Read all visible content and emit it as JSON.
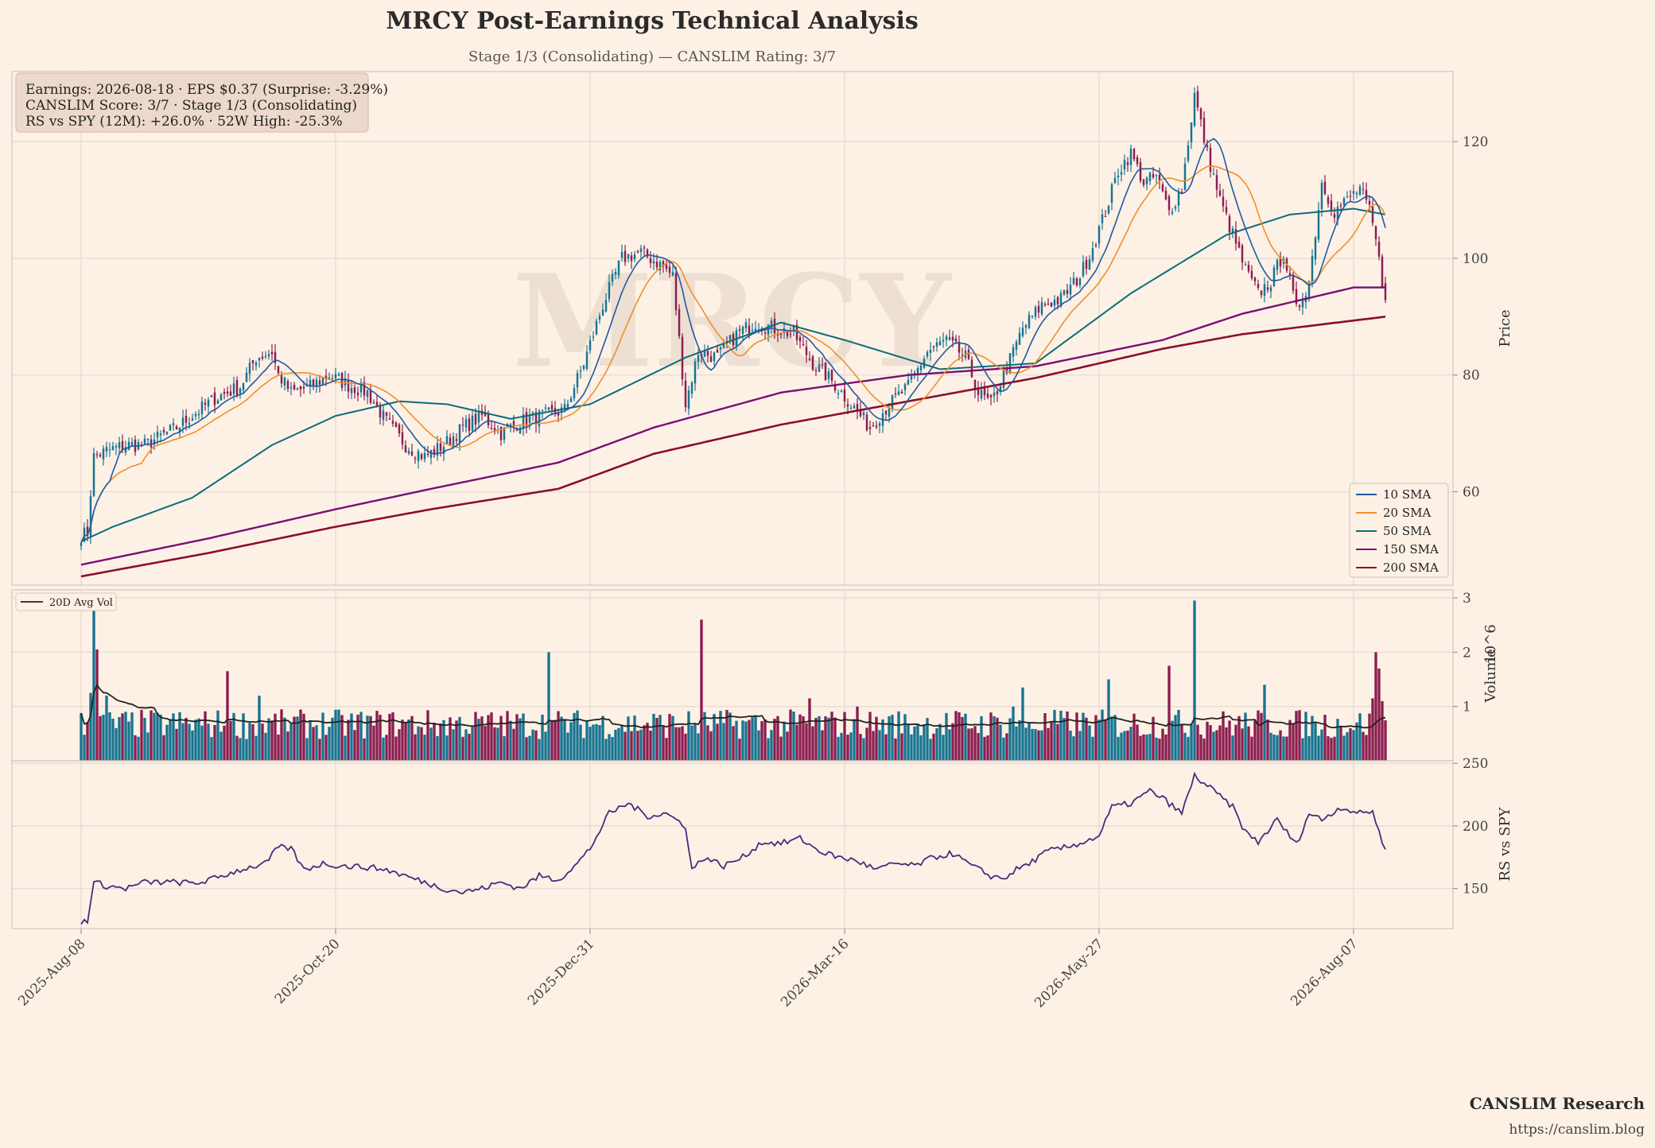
{
  "title": "MRCY Post-Earnings Technical Analysis",
  "subtitle": "Stage 1/3 (Consolidating) — CANSLIM Rating: 3/7",
  "watermark": "MRCY",
  "info_box": [
    "Earnings: 2026-08-18 · EPS $0.37 (Surprise: -3.29%)",
    "CANSLIM Score: 3/7 · Stage 1/3 (Consolidating)",
    "RS vs SPY (12M): +26.0% · 52W High: -25.3%"
  ],
  "footer": {
    "brand": "CANSLIM Research",
    "url": "https://canslim.blog"
  },
  "colors": {
    "background": "#fdf1e6",
    "up_candle": "#187491",
    "down_candle": "#8b1e50",
    "sma10": "#1f5aa0",
    "sma20": "#f28e2b",
    "sma50": "#0e6b78",
    "sma150": "#7a0f74",
    "sma200": "#8c0e2c",
    "avg_vol": "#222222",
    "rs_line": "#4a2a7a"
  },
  "chart_data": {
    "type": "candlestick",
    "price_panel": {
      "ylabel": "Price",
      "ylim": [
        44,
        132
      ],
      "yticks": [
        60,
        80,
        100,
        120
      ],
      "legend_position": "lower-right",
      "legend": [
        {
          "name": "10 SMA",
          "key": "sma10"
        },
        {
          "name": "20 SMA",
          "key": "sma20"
        },
        {
          "name": "50 SMA",
          "key": "sma50"
        },
        {
          "name": "150 SMA",
          "key": "sma150"
        },
        {
          "name": "200 SMA",
          "key": "sma200"
        }
      ],
      "close_path_anchors": [
        [
          0,
          52.5
        ],
        [
          2,
          53
        ],
        [
          3,
          60
        ],
        [
          4,
          66
        ],
        [
          8,
          67
        ],
        [
          14,
          68
        ],
        [
          20,
          68
        ],
        [
          30,
          71
        ],
        [
          42,
          76
        ],
        [
          50,
          78
        ],
        [
          55,
          83
        ],
        [
          60,
          84
        ],
        [
          62,
          80
        ],
        [
          66,
          77
        ],
        [
          72,
          78
        ],
        [
          78,
          80
        ],
        [
          85,
          78
        ],
        [
          90,
          77
        ],
        [
          96,
          72
        ],
        [
          102,
          68
        ],
        [
          108,
          66
        ],
        [
          114,
          68
        ],
        [
          120,
          71
        ],
        [
          126,
          73
        ],
        [
          132,
          70
        ],
        [
          138,
          72
        ],
        [
          145,
          73
        ],
        [
          152,
          74
        ],
        [
          158,
          82
        ],
        [
          164,
          92
        ],
        [
          170,
          100
        ],
        [
          176,
          101
        ],
        [
          182,
          99
        ],
        [
          186,
          97
        ],
        [
          190,
          75
        ],
        [
          194,
          84
        ],
        [
          200,
          83
        ],
        [
          206,
          87
        ],
        [
          212,
          89
        ],
        [
          218,
          88
        ],
        [
          224,
          87
        ],
        [
          230,
          82
        ],
        [
          236,
          79
        ],
        [
          242,
          75
        ],
        [
          248,
          71
        ],
        [
          254,
          75
        ],
        [
          260,
          78
        ],
        [
          266,
          84
        ],
        [
          272,
          86
        ],
        [
          278,
          83
        ],
        [
          282,
          77
        ],
        [
          286,
          75
        ],
        [
          290,
          80
        ],
        [
          296,
          88
        ],
        [
          302,
          92
        ],
        [
          308,
          93
        ],
        [
          314,
          97
        ],
        [
          318,
          102
        ],
        [
          322,
          108
        ],
        [
          326,
          115
        ],
        [
          330,
          118
        ],
        [
          334,
          113
        ],
        [
          338,
          114
        ],
        [
          342,
          108
        ],
        [
          346,
          112
        ],
        [
          350,
          128
        ],
        [
          354,
          118
        ],
        [
          358,
          110
        ],
        [
          362,
          104
        ],
        [
          366,
          98
        ],
        [
          370,
          94
        ],
        [
          374,
          96
        ],
        [
          378,
          101
        ],
        [
          382,
          91
        ],
        [
          386,
          96
        ],
        [
          390,
          113
        ],
        [
          394,
          108
        ],
        [
          398,
          110
        ],
        [
          402,
          112
        ],
        [
          405,
          108
        ],
        [
          407,
          103
        ],
        [
          409,
          96
        ],
        [
          410,
          94
        ]
      ],
      "n_days": 411
    },
    "sma_data": {
      "sma50": [
        [
          0,
          51.5
        ],
        [
          10,
          54
        ],
        [
          35,
          59
        ],
        [
          60,
          68
        ],
        [
          80,
          73
        ],
        [
          100,
          75.5
        ],
        [
          115,
          75
        ],
        [
          135,
          72.5
        ],
        [
          160,
          75
        ],
        [
          190,
          83
        ],
        [
          220,
          89
        ],
        [
          240,
          86
        ],
        [
          270,
          81
        ],
        [
          300,
          82
        ],
        [
          330,
          94
        ],
        [
          360,
          104
        ],
        [
          380,
          107.5
        ],
        [
          400,
          108.5
        ],
        [
          410,
          107.5
        ]
      ],
      "sma150": [
        [
          0,
          47.5
        ],
        [
          40,
          52
        ],
        [
          80,
          57
        ],
        [
          110,
          60.5
        ],
        [
          150,
          65
        ],
        [
          180,
          71
        ],
        [
          220,
          77
        ],
        [
          260,
          80
        ],
        [
          300,
          81.5
        ],
        [
          340,
          86
        ],
        [
          365,
          90.5
        ],
        [
          400,
          95
        ],
        [
          410,
          95
        ]
      ],
      "sma200": [
        [
          0,
          45.5
        ],
        [
          40,
          49.5
        ],
        [
          80,
          54
        ],
        [
          110,
          57
        ],
        [
          150,
          60.5
        ],
        [
          180,
          66.5
        ],
        [
          220,
          71.5
        ],
        [
          260,
          75.5
        ],
        [
          300,
          79.5
        ],
        [
          340,
          84.5
        ],
        [
          365,
          87
        ],
        [
          410,
          90
        ]
      ]
    },
    "volume_panel": {
      "ylabel": "Volume",
      "unit_label": "10^6",
      "ylim": [
        0,
        3.0
      ],
      "yticks": [
        1,
        2,
        3
      ],
      "legend": [
        {
          "name": "20D Avg Vol",
          "key": "avg_vol"
        }
      ],
      "legend_position": "upper-left",
      "spikes": [
        {
          "day": 3,
          "value": 1.25
        },
        {
          "day": 4,
          "value": 3.0
        },
        {
          "day": 5,
          "value": 2.05
        },
        {
          "day": 8,
          "value": 1.2
        },
        {
          "day": 46,
          "value": 1.65
        },
        {
          "day": 56,
          "value": 1.2
        },
        {
          "day": 147,
          "value": 2.0
        },
        {
          "day": 195,
          "value": 2.6
        },
        {
          "day": 229,
          "value": 1.15
        },
        {
          "day": 244,
          "value": 1.0
        },
        {
          "day": 293,
          "value": 1.0
        },
        {
          "day": 296,
          "value": 1.35
        },
        {
          "day": 323,
          "value": 1.5
        },
        {
          "day": 342,
          "value": 1.75
        },
        {
          "day": 350,
          "value": 2.95
        },
        {
          "day": 372,
          "value": 1.4
        },
        {
          "day": 406,
          "value": 1.15
        },
        {
          "day": 407,
          "value": 2.0
        },
        {
          "day": 408,
          "value": 1.7
        },
        {
          "day": 409,
          "value": 1.1
        }
      ]
    },
    "rs_panel": {
      "ylabel": "RS vs SPY",
      "ylim": [
        118,
        252
      ],
      "yticks": [
        150,
        200,
        250
      ],
      "anchors": [
        [
          0,
          123
        ],
        [
          2,
          125
        ],
        [
          4,
          155
        ],
        [
          8,
          152
        ],
        [
          14,
          150
        ],
        [
          20,
          155
        ],
        [
          30,
          155
        ],
        [
          36,
          154
        ],
        [
          42,
          158
        ],
        [
          50,
          165
        ],
        [
          58,
          170
        ],
        [
          62,
          183
        ],
        [
          66,
          182
        ],
        [
          70,
          165
        ],
        [
          76,
          170
        ],
        [
          82,
          168
        ],
        [
          90,
          167
        ],
        [
          96,
          165
        ],
        [
          102,
          160
        ],
        [
          108,
          155
        ],
        [
          114,
          150
        ],
        [
          120,
          147
        ],
        [
          126,
          150
        ],
        [
          132,
          155
        ],
        [
          138,
          150
        ],
        [
          144,
          160
        ],
        [
          150,
          157
        ],
        [
          156,
          170
        ],
        [
          160,
          182
        ],
        [
          166,
          210
        ],
        [
          172,
          218
        ],
        [
          178,
          208
        ],
        [
          184,
          210
        ],
        [
          190,
          200
        ],
        [
          192,
          165
        ],
        [
          196,
          175
        ],
        [
          202,
          168
        ],
        [
          208,
          175
        ],
        [
          214,
          187
        ],
        [
          220,
          186
        ],
        [
          226,
          190
        ],
        [
          232,
          180
        ],
        [
          238,
          175
        ],
        [
          244,
          172
        ],
        [
          250,
          165
        ],
        [
          256,
          170
        ],
        [
          262,
          168
        ],
        [
          268,
          175
        ],
        [
          274,
          178
        ],
        [
          280,
          168
        ],
        [
          286,
          160
        ],
        [
          290,
          158
        ],
        [
          294,
          165
        ],
        [
          298,
          170
        ],
        [
          304,
          180
        ],
        [
          310,
          183
        ],
        [
          316,
          188
        ],
        [
          320,
          192
        ],
        [
          324,
          215
        ],
        [
          330,
          218
        ],
        [
          336,
          228
        ],
        [
          340,
          222
        ],
        [
          346,
          210
        ],
        [
          350,
          240
        ],
        [
          356,
          228
        ],
        [
          362,
          215
        ],
        [
          366,
          195
        ],
        [
          370,
          187
        ],
        [
          376,
          205
        ],
        [
          382,
          185
        ],
        [
          386,
          210
        ],
        [
          390,
          205
        ],
        [
          396,
          215
        ],
        [
          402,
          210
        ],
        [
          406,
          212
        ],
        [
          408,
          195
        ],
        [
          410,
          180
        ]
      ]
    },
    "xaxis": {
      "tick_labels": [
        "2025-Aug-08",
        "2025-Oct-20",
        "2025-Dec-31",
        "2026-Mar-16",
        "2026-May-27",
        "2026-Aug-07"
      ],
      "tick_days": [
        0,
        80,
        160,
        240,
        320,
        400
      ]
    }
  }
}
